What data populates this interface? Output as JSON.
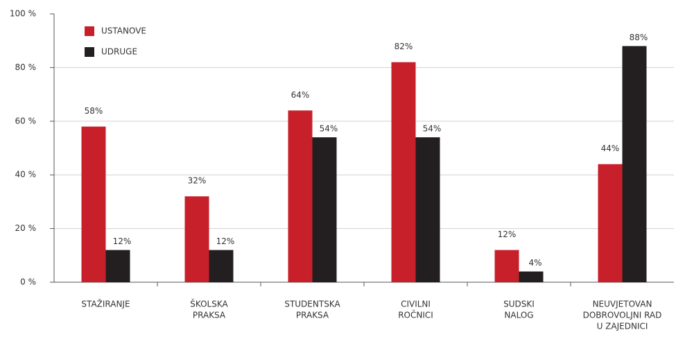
{
  "chart_data": {
    "type": "bar",
    "categories": [
      [
        "STAŽIRANJE"
      ],
      [
        "ŠKOLSKA",
        "PRAKSA"
      ],
      [
        "STUDENTSKA",
        "PRAKSA"
      ],
      [
        "CIVILNI",
        "ROČNICI"
      ],
      [
        "SUDSKI",
        "NALOG"
      ],
      [
        "NEUVJETOVAN",
        "DOBROVOLJNI RAD",
        "U ZAJEDNICI"
      ]
    ],
    "series": [
      {
        "name": "USTANOVE",
        "color": "#c8202a",
        "values": [
          58,
          32,
          64,
          82,
          12,
          44
        ],
        "value_labels": [
          "58%",
          "32%",
          "64%",
          "82%",
          "12%",
          "44%"
        ]
      },
      {
        "name": "UDRUGE",
        "color": "#231f20",
        "values": [
          12,
          12,
          54,
          54,
          4,
          88
        ],
        "value_labels": [
          "12%",
          "12%",
          "54%",
          "54%",
          "4%",
          "88%"
        ]
      }
    ],
    "ylim": [
      0,
      100
    ],
    "yticks": [
      {
        "value": 0,
        "label": "0 %"
      },
      {
        "value": 20,
        "label": "20 %"
      },
      {
        "value": 40,
        "label": "40 %"
      },
      {
        "value": 60,
        "label": "60 %"
      },
      {
        "value": 80,
        "label": "80 %"
      },
      {
        "value": 100,
        "label": "100 %"
      }
    ],
    "grid": true,
    "legend": "top-left"
  }
}
